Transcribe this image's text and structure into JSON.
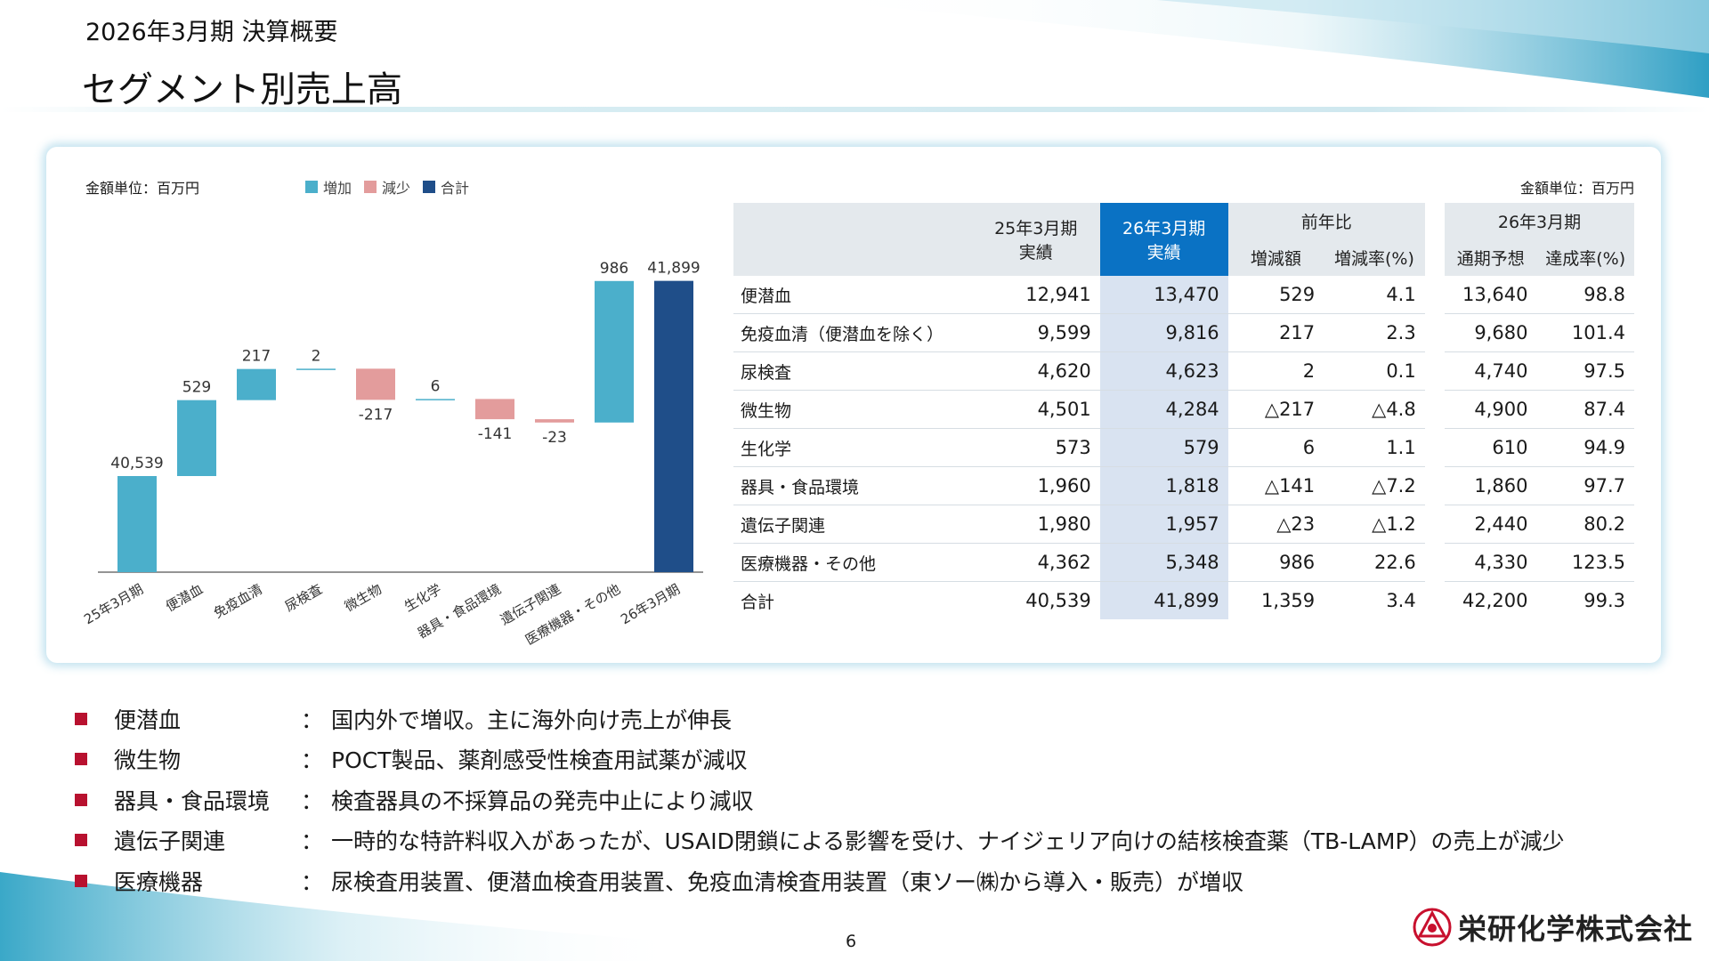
{
  "header": {
    "subtitle": "2026年3月期 決算概要",
    "title": "セグメント別売上高"
  },
  "panel": {
    "unit_left": "金額単位：百万円",
    "unit_right": "金額単位：百万円"
  },
  "legend": [
    {
      "label": "増加",
      "color": "#4bafcb"
    },
    {
      "label": "減少",
      "color": "#e39c9c"
    },
    {
      "label": "合計",
      "color": "#1f4e89"
    }
  ],
  "chart_data": {
    "type": "waterfall",
    "categories": [
      "25年3月期",
      "便潜血",
      "免疫血清",
      "尿検査",
      "微生物",
      "生化学",
      "器具・食品環境",
      "遺伝子関連",
      "医療機器・その他",
      "26年3月期"
    ],
    "values": [
      40539,
      529,
      217,
      2,
      -217,
      6,
      -141,
      -23,
      986,
      41899
    ],
    "labels": [
      "40,539",
      "529",
      "217",
      "2",
      "-217",
      "6",
      "-141",
      "-23",
      "986",
      "41,899"
    ],
    "kinds": [
      "base",
      "inc",
      "inc",
      "inc",
      "dec",
      "inc",
      "dec",
      "dec",
      "inc",
      "total"
    ],
    "colors": {
      "base": "#4bafcb",
      "inc": "#4bafcb",
      "dec": "#e39c9c",
      "total": "#1f4e89"
    }
  },
  "table": {
    "headers": {
      "fy25": [
        "25年3月期",
        "実績"
      ],
      "fy26": [
        "26年3月期",
        "実績"
      ],
      "yoy": "前年比",
      "yoy_amount": "増減額",
      "yoy_rate": "増減率(%)",
      "forecast": "26年3月期",
      "forecast_full": "通期予想",
      "forecast_rate": "達成率(%)"
    },
    "rows": [
      {
        "segment": "便潜血",
        "fy25": "12,941",
        "fy26": "13,470",
        "diff": "529",
        "rate": "4.1",
        "forecast": "13,640",
        "achieve": "98.8"
      },
      {
        "segment": "免疫血清（便潜血を除く）",
        "fy25": "9,599",
        "fy26": "9,816",
        "diff": "217",
        "rate": "2.3",
        "forecast": "9,680",
        "achieve": "101.4"
      },
      {
        "segment": "尿検査",
        "fy25": "4,620",
        "fy26": "4,623",
        "diff": "2",
        "rate": "0.1",
        "forecast": "4,740",
        "achieve": "97.5"
      },
      {
        "segment": "微生物",
        "fy25": "4,501",
        "fy26": "4,284",
        "diff": "△217",
        "rate": "△4.8",
        "forecast": "4,900",
        "achieve": "87.4"
      },
      {
        "segment": "生化学",
        "fy25": "573",
        "fy26": "579",
        "diff": "6",
        "rate": "1.1",
        "forecast": "610",
        "achieve": "94.9"
      },
      {
        "segment": "器具・食品環境",
        "fy25": "1,960",
        "fy26": "1,818",
        "diff": "△141",
        "rate": "△7.2",
        "forecast": "1,860",
        "achieve": "97.7"
      },
      {
        "segment": "遺伝子関連",
        "fy25": "1,980",
        "fy26": "1,957",
        "diff": "△23",
        "rate": "△1.2",
        "forecast": "2,440",
        "achieve": "80.2"
      },
      {
        "segment": "医療機器・その他",
        "fy25": "4,362",
        "fy26": "5,348",
        "diff": "986",
        "rate": "22.6",
        "forecast": "4,330",
        "achieve": "123.5"
      },
      {
        "segment": "合計",
        "fy25": "40,539",
        "fy26": "41,899",
        "diff": "1,359",
        "rate": "3.4",
        "forecast": "42,200",
        "achieve": "99.3"
      }
    ]
  },
  "bullets": [
    {
      "label": "便潜血",
      "colon": "：",
      "text": "国内外で増収。主に海外向け売上が伸長"
    },
    {
      "label": "微生物",
      "colon": "：",
      "text": "POCT製品、薬剤感受性検査用試薬が減収"
    },
    {
      "label": "器具・食品環境",
      "colon": "：",
      "text": "検査器具の不採算品の発売中止により減収"
    },
    {
      "label": "遺伝子関連",
      "colon": "：",
      "text": "一時的な特許料収入があったが、USAID閉鎖による影響を受け、ナイジェリア向けの結核検査薬（TB-LAMP）の売上が減少"
    },
    {
      "label": "医療機器",
      "colon": "：",
      "text": "尿検査用装置、便潜血検査用装置、免疫血清検査用装置（東ソー㈱から導入・販売）が増収"
    }
  ],
  "footer": {
    "page": "6",
    "company": "栄研化学株式会社"
  }
}
